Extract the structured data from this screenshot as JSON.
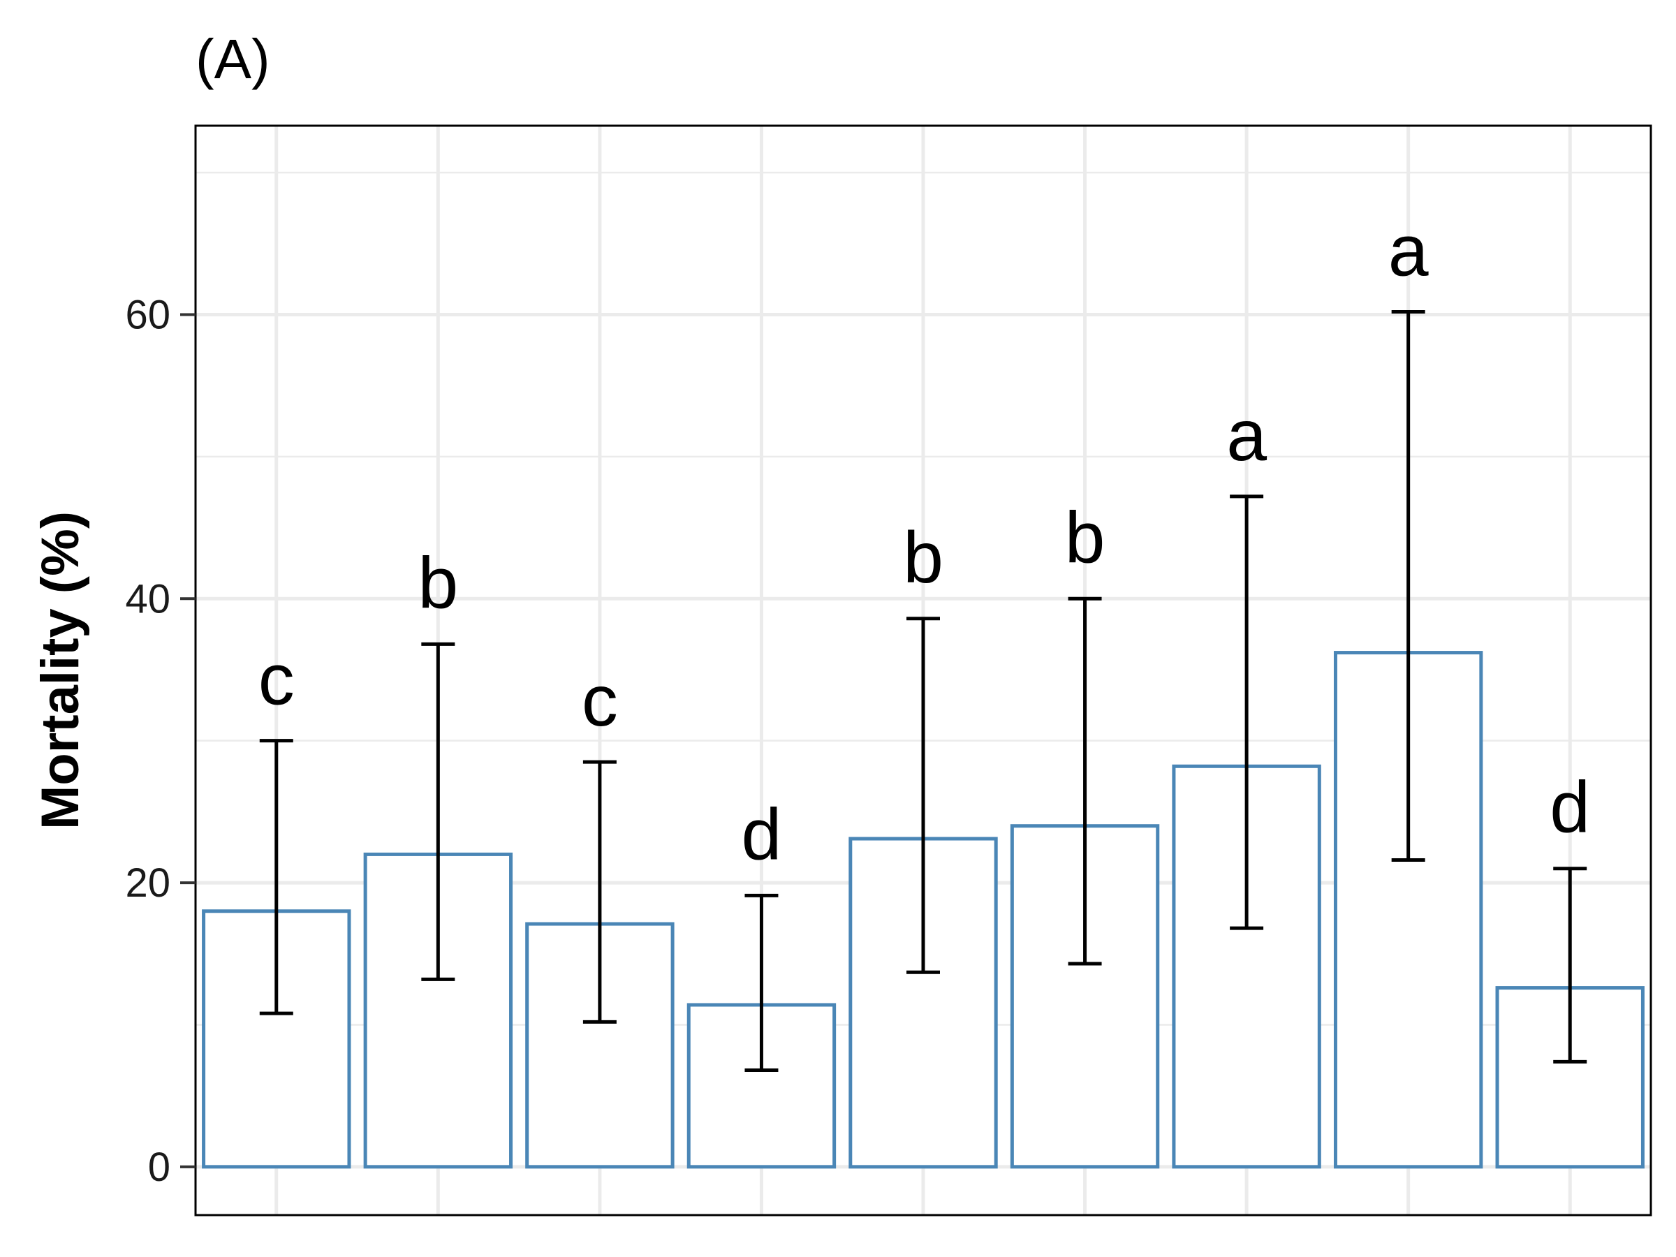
{
  "chart_data": {
    "type": "bar",
    "title": "(A)",
    "xlabel": "",
    "ylabel": "Mortality (%)",
    "ylim": [
      -3.4,
      73.3
    ],
    "yticks": [
      0,
      20,
      40,
      60
    ],
    "grid": true,
    "legend": "none",
    "categories": [
      "",
      "",
      "",
      "",
      "",
      "",
      "",
      "",
      ""
    ],
    "values": [
      18.0,
      22.0,
      17.1,
      11.4,
      23.1,
      24.0,
      28.2,
      36.2,
      12.6
    ],
    "error_low": [
      10.8,
      13.2,
      10.2,
      6.8,
      13.7,
      14.3,
      16.8,
      21.6,
      7.4
    ],
    "error_high": [
      30.0,
      36.8,
      28.5,
      19.1,
      38.6,
      40.0,
      47.2,
      60.2,
      21.0
    ],
    "labels": [
      "c",
      "b",
      "c",
      "d",
      "b",
      "b",
      "a",
      "a",
      "d"
    ],
    "colors": {
      "bar_outline": "#4a86b6",
      "bar_fill": "#ffffff",
      "error_bar": "#000000",
      "grid": "#ebebeb",
      "panel_border": "#000000"
    }
  }
}
